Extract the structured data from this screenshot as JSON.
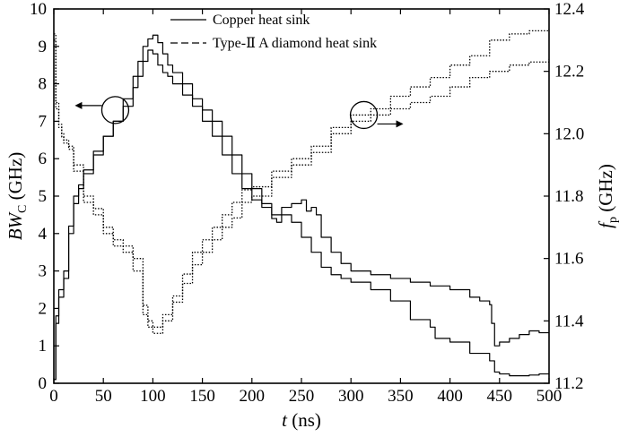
{
  "chart_data": {
    "type": "line",
    "xlabel_var": "t",
    "xlabel_unit": " (ns)",
    "ylabel_left_var": "BW",
    "ylabel_left_sub": "C",
    "ylabel_left_unit": " (GHz)",
    "ylabel_right_var": "f",
    "ylabel_right_sub": "p",
    "ylabel_right_unit": " (GHz)",
    "x_range": [
      0,
      500
    ],
    "y_left_range": [
      0,
      10
    ],
    "y_right_range": [
      11.2,
      12.4
    ],
    "x_ticks": [
      0,
      50,
      100,
      150,
      200,
      250,
      300,
      350,
      400,
      450,
      500
    ],
    "y_left_ticks": [
      0,
      1,
      2,
      3,
      4,
      5,
      6,
      7,
      8,
      9,
      10
    ],
    "y_right_ticks": [
      "11.2",
      "11.4",
      "11.6",
      "11.8",
      "12.0",
      "12.2",
      "12.4"
    ],
    "legend": {
      "placement": "top-center",
      "entries": [
        {
          "name": "Copper heat sink",
          "style": "solid"
        },
        {
          "name": "Type-Ⅱ A diamond heat sink",
          "style": "dashed"
        }
      ]
    },
    "annotations": [
      {
        "type": "circle-arrow",
        "at_x": 62,
        "at_y": 7.3,
        "axis": "left",
        "arrow": "left"
      },
      {
        "type": "circle-arrow",
        "at_x": 313,
        "at_y": 12.06,
        "axis": "right",
        "arrow": "right"
      }
    ],
    "series": [
      {
        "name": "Copper heat sink",
        "axis": "left",
        "style": "solid",
        "x": [
          0,
          2,
          5,
          10,
          15,
          20,
          25,
          30,
          40,
          50,
          60,
          70,
          80,
          85,
          90,
          95,
          100,
          105,
          110,
          115,
          120,
          130,
          140,
          150,
          160,
          170,
          180,
          190,
          200,
          210,
          220,
          225,
          230,
          240,
          250,
          255,
          260,
          265,
          270,
          280,
          290,
          300,
          320,
          340,
          360,
          380,
          400,
          420,
          430,
          440,
          442,
          445,
          450,
          460,
          470,
          480,
          490,
          500
        ],
        "y": [
          0.1,
          1.8,
          2.5,
          3.0,
          4.2,
          5.0,
          5.3,
          5.7,
          6.2,
          6.6,
          7.0,
          7.6,
          8.2,
          8.6,
          9.0,
          9.2,
          9.3,
          9.1,
          8.8,
          8.5,
          8.3,
          8.0,
          7.6,
          7.3,
          7.0,
          6.6,
          6.1,
          5.6,
          5.2,
          4.8,
          4.4,
          4.3,
          4.7,
          4.8,
          4.9,
          4.6,
          4.7,
          4.5,
          3.9,
          3.5,
          3.2,
          3.0,
          2.9,
          2.8,
          2.7,
          2.6,
          2.5,
          2.3,
          2.2,
          2.1,
          1.6,
          1.0,
          1.1,
          1.2,
          1.3,
          1.4,
          1.35,
          1.35
        ]
      },
      {
        "name": "Type-Ⅱ A diamond heat sink",
        "axis": "left",
        "style": "solid",
        "x": [
          0,
          2,
          5,
          10,
          15,
          20,
          25,
          30,
          40,
          50,
          60,
          70,
          80,
          85,
          90,
          95,
          100,
          105,
          110,
          115,
          120,
          130,
          140,
          150,
          160,
          170,
          180,
          190,
          200,
          210,
          220,
          230,
          240,
          250,
          260,
          270,
          280,
          290,
          300,
          320,
          340,
          360,
          380,
          385,
          400,
          420,
          440,
          445,
          450,
          460,
          470,
          480,
          490,
          500
        ],
        "y": [
          0.1,
          1.6,
          2.3,
          2.8,
          4.0,
          4.8,
          5.2,
          5.6,
          6.1,
          6.6,
          7.0,
          7.4,
          7.9,
          8.2,
          8.6,
          8.9,
          8.8,
          8.5,
          8.3,
          8.2,
          8.0,
          7.7,
          7.4,
          7.0,
          6.6,
          6.1,
          5.6,
          5.2,
          4.9,
          4.7,
          4.5,
          4.5,
          4.3,
          3.9,
          3.5,
          3.1,
          2.9,
          2.8,
          2.7,
          2.5,
          2.2,
          1.7,
          1.5,
          1.2,
          1.1,
          0.8,
          0.6,
          0.3,
          0.25,
          0.2,
          0.2,
          0.22,
          0.25,
          0.25
        ]
      },
      {
        "name": "Copper heat sink",
        "axis": "right",
        "style": "dotted",
        "x": [
          0,
          2,
          5,
          8,
          10,
          15,
          20,
          30,
          40,
          50,
          60,
          70,
          80,
          90,
          95,
          100,
          110,
          120,
          130,
          140,
          150,
          160,
          170,
          180,
          190,
          200,
          220,
          240,
          260,
          280,
          300,
          320,
          340,
          360,
          380,
          400,
          420,
          440,
          460,
          480,
          500
        ],
        "y": [
          12.32,
          12.1,
          12.03,
          12.0,
          11.98,
          11.96,
          11.9,
          11.8,
          11.76,
          11.7,
          11.66,
          11.64,
          11.6,
          11.45,
          11.4,
          11.38,
          11.42,
          11.48,
          11.55,
          11.62,
          11.66,
          11.7,
          11.74,
          11.78,
          11.82,
          11.83,
          11.88,
          11.92,
          11.96,
          12.02,
          12.06,
          12.08,
          12.12,
          12.15,
          12.18,
          12.22,
          12.25,
          12.3,
          12.32,
          12.33,
          12.34
        ]
      },
      {
        "name": "Type-Ⅱ A diamond heat sink",
        "axis": "right",
        "style": "dotted",
        "x": [
          0,
          2,
          5,
          8,
          10,
          15,
          20,
          30,
          40,
          50,
          60,
          70,
          80,
          90,
          95,
          100,
          110,
          120,
          130,
          140,
          150,
          160,
          170,
          180,
          190,
          200,
          220,
          240,
          260,
          280,
          300,
          320,
          340,
          360,
          380,
          400,
          420,
          440,
          460,
          480,
          500
        ],
        "y": [
          12.3,
          12.08,
          12.02,
          11.99,
          11.97,
          11.95,
          11.88,
          11.78,
          11.74,
          11.68,
          11.64,
          11.62,
          11.56,
          11.42,
          11.38,
          11.36,
          11.4,
          11.46,
          11.52,
          11.58,
          11.62,
          11.66,
          11.7,
          11.73,
          11.78,
          11.8,
          11.86,
          11.9,
          11.94,
          12.0,
          12.04,
          12.06,
          12.08,
          12.1,
          12.12,
          12.15,
          12.18,
          12.2,
          12.22,
          12.23,
          12.24
        ]
      }
    ]
  }
}
